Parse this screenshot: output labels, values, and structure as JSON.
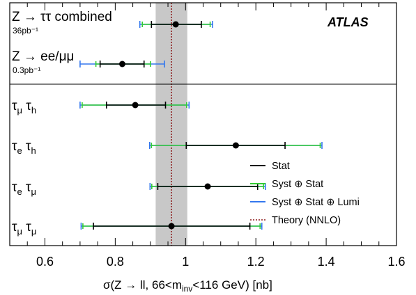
{
  "chart_data": {
    "type": "errorbar",
    "xlabel_main": "σ(Z → ll, 66<m",
    "xlabel_sub": "inv",
    "xlabel_tail": "<116 GeV) [nb]",
    "xlim": [
      0.5,
      1.6
    ],
    "xticks": [
      "0.6",
      "0.8",
      "1",
      "1.2",
      "1.4",
      "1.6"
    ],
    "xtick_values": [
      0.6,
      0.8,
      1.0,
      1.2,
      1.4,
      1.6
    ],
    "experiment_label": "ATLAS",
    "theory": {
      "label": "Theory (NNLO)",
      "value": 0.96,
      "band": [
        0.915,
        1.005
      ]
    },
    "measurements": [
      {
        "label_main": "Z → ττ combined",
        "luminosity": "36pb⁻¹",
        "value": 0.972,
        "stat": [
          0.903,
          1.045
        ],
        "syst_stat": [
          0.877,
          1.07
        ],
        "syst_stat_lumi": [
          0.87,
          1.077
        ]
      },
      {
        "label_main": "Z → ee/μμ",
        "luminosity": "0.3pb⁻¹",
        "value": 0.82,
        "stat": [
          0.757,
          0.882
        ],
        "syst_stat": [
          0.745,
          0.9
        ],
        "syst_stat_lumi": [
          0.7,
          0.94
        ]
      },
      {
        "label_main": "τ",
        "sub1": "μ",
        "label_mid": " τ",
        "sub2": "h",
        "value": 0.857,
        "stat": [
          0.775,
          0.943
        ],
        "syst_stat": [
          0.706,
          1.003
        ],
        "syst_stat_lumi": [
          0.7,
          1.01
        ]
      },
      {
        "label_main": "τ",
        "sub1": "e",
        "label_mid": " τ",
        "sub2": "h",
        "value": 1.143,
        "stat": [
          1.002,
          1.283
        ],
        "syst_stat": [
          0.903,
          1.383
        ],
        "syst_stat_lumi": [
          0.898,
          1.388
        ]
      },
      {
        "label_main": "τ",
        "sub1": "e",
        "label_mid": " τ",
        "sub2": "μ",
        "value": 1.063,
        "stat": [
          0.921,
          1.205
        ],
        "syst_stat": [
          0.904,
          1.222
        ],
        "syst_stat_lumi": [
          0.899,
          1.227
        ]
      },
      {
        "label_main": "τ",
        "sub1": "μ",
        "label_mid": " τ",
        "sub2": "μ",
        "value": 0.96,
        "stat": [
          0.738,
          1.183
        ],
        "syst_stat": [
          0.708,
          1.212
        ],
        "syst_stat_lumi": [
          0.703,
          1.217
        ]
      }
    ],
    "legend": [
      {
        "label": "Stat",
        "color": "#000000",
        "style": "solid"
      },
      {
        "label": "Syst ⊕ Stat",
        "color": "#33cc33",
        "style": "solid"
      },
      {
        "label": "Syst ⊕ Stat ⊕ Lumi",
        "color": "#3377ee",
        "style": "solid"
      },
      {
        "label": "Theory (NNLO)",
        "color": "#8b1a1a",
        "style": "dotted"
      }
    ],
    "colors": {
      "stat": "#000000",
      "syst": "#33cc33",
      "lumi": "#3377ee",
      "theory": "#8b1a1a",
      "band": "#c8c8c8"
    }
  }
}
